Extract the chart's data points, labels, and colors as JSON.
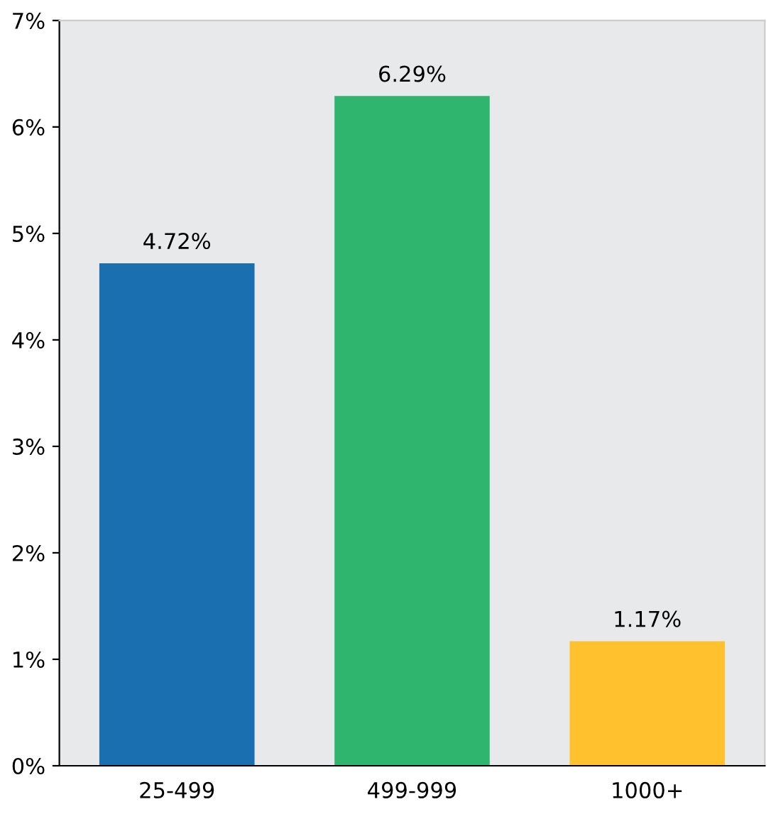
{
  "chart_data": {
    "type": "bar",
    "categories": [
      "25-499",
      "499-999",
      "1000+"
    ],
    "values": [
      4.72,
      6.29,
      1.17
    ],
    "value_labels": [
      "4.72%",
      "6.29%",
      "1.17%"
    ],
    "colors": [
      "#1a6fb0",
      "#2fb56e",
      "#ffc12e"
    ],
    "ylim": [
      0,
      7
    ],
    "yticks": [
      {
        "value": 0,
        "label": "0%"
      },
      {
        "value": 1,
        "label": "1%"
      },
      {
        "value": 2,
        "label": "2%"
      },
      {
        "value": 3,
        "label": "3%"
      },
      {
        "value": 4,
        "label": "4%"
      },
      {
        "value": 5,
        "label": "5%"
      },
      {
        "value": 6,
        "label": "6%"
      },
      {
        "value": 7,
        "label": "7%"
      }
    ],
    "grid": false,
    "legend": false
  }
}
